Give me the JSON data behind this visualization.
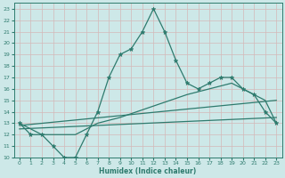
{
  "xlabel": "Humidex (Indice chaleur)",
  "bg_color": "#cde8e8",
  "grid_color": "#b8d8d8",
  "line_color": "#2e7b6e",
  "xlim": [
    -0.5,
    23.5
  ],
  "ylim": [
    10,
    23.5
  ],
  "xticks": [
    0,
    1,
    2,
    3,
    4,
    5,
    6,
    7,
    8,
    9,
    10,
    11,
    12,
    13,
    14,
    15,
    16,
    17,
    18,
    19,
    20,
    21,
    22,
    23
  ],
  "yticks": [
    10,
    11,
    12,
    13,
    14,
    15,
    16,
    17,
    18,
    19,
    20,
    21,
    22,
    23
  ],
  "line1": {
    "x": [
      0,
      1,
      2,
      3,
      4,
      5,
      6,
      7,
      8,
      9,
      10,
      11,
      12,
      13,
      14,
      15,
      16,
      17,
      18,
      19,
      20,
      21,
      22,
      23
    ],
    "y": [
      13,
      12,
      12,
      11,
      10,
      10,
      12,
      14,
      17,
      19,
      19.5,
      21,
      23,
      21,
      18.5,
      16.5,
      16,
      16.5,
      17,
      17,
      16,
      15.5,
      14,
      13
    ]
  },
  "line2": {
    "x": [
      0,
      2,
      5,
      7,
      9,
      12,
      15,
      17,
      19,
      20,
      22,
      23
    ],
    "y": [
      13,
      12,
      12,
      13,
      13.5,
      14.5,
      15.5,
      16,
      16.5,
      16,
      15,
      13
    ]
  },
  "line3": {
    "x": [
      0,
      23
    ],
    "y": [
      12.8,
      15.0
    ]
  },
  "line4": {
    "x": [
      0,
      23
    ],
    "y": [
      12.5,
      13.5
    ]
  }
}
